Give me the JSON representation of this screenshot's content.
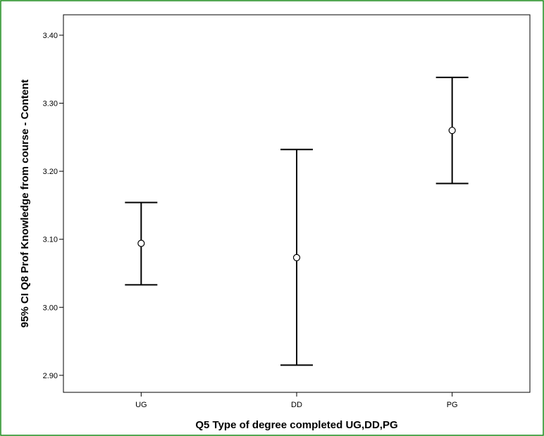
{
  "chart_data": {
    "type": "errorbar",
    "xlabel": "Q5 Type of degree completed UG,DD,PG",
    "ylabel": "95% CI Q8 Prof Knowledge from course - Content",
    "categories": [
      "UG",
      "DD",
      "PG"
    ],
    "series": [
      {
        "means": [
          3.094,
          3.073,
          3.26
        ],
        "lower": [
          3.033,
          2.915,
          3.182
        ],
        "upper": [
          3.154,
          3.232,
          3.338
        ]
      }
    ],
    "ylim": [
      2.875,
      3.43
    ],
    "yticks": [
      2.9,
      3.0,
      3.1,
      3.2,
      3.3,
      3.4
    ],
    "ytick_labels": [
      "2.90",
      "3.00",
      "3.10",
      "3.20",
      "3.30",
      "3.40"
    ],
    "grid": false,
    "legend": "none",
    "colors": {
      "frame_border": "#1a8a1a",
      "axes": "#000000",
      "marks": "#000000"
    }
  }
}
